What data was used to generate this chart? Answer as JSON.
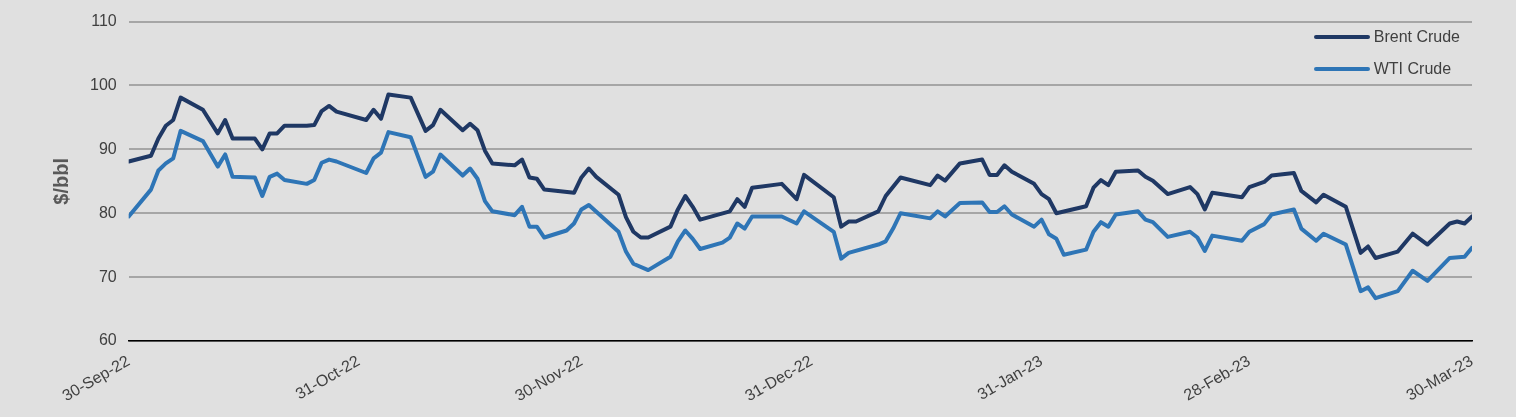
{
  "chart_data": {
    "type": "line",
    "ylabel": "$/bbl",
    "xlim": [
      "2022-09-30",
      "2023-03-30"
    ],
    "xticks": [
      {
        "value": "2022-09-30",
        "label": "30-Sep-22"
      },
      {
        "value": "2022-10-31",
        "label": "31-Oct-22"
      },
      {
        "value": "2022-11-30",
        "label": "30-Nov-22"
      },
      {
        "value": "2022-12-31",
        "label": "31-Dec-22"
      },
      {
        "value": "2023-01-31",
        "label": "31-Jan-23"
      },
      {
        "value": "2023-02-28",
        "label": "28-Feb-23"
      },
      {
        "value": "2023-03-30",
        "label": "30-Mar-23"
      }
    ],
    "ylim": [
      60,
      110
    ],
    "yticks": [
      60,
      70,
      80,
      90,
      100,
      110
    ],
    "grid": "y",
    "legend": "top right",
    "marker": "none",
    "line_style": "solid",
    "series": [
      {
        "name": "Brent Crude",
        "color": "#1f3864",
        "x": [
          "2022-09-30",
          "2022-10-03",
          "2022-10-04",
          "2022-10-05",
          "2022-10-06",
          "2022-10-07",
          "2022-10-10",
          "2022-10-12",
          "2022-10-13",
          "2022-10-14",
          "2022-10-17",
          "2022-10-18",
          "2022-10-19",
          "2022-10-20",
          "2022-10-21",
          "2022-10-24",
          "2022-10-25",
          "2022-10-26",
          "2022-10-27",
          "2022-10-28",
          "2022-11-01",
          "2022-11-02",
          "2022-11-03",
          "2022-11-04",
          "2022-11-07",
          "2022-11-09",
          "2022-11-10",
          "2022-11-11",
          "2022-11-14",
          "2022-11-15",
          "2022-11-16",
          "2022-11-17",
          "2022-11-18",
          "2022-11-21",
          "2022-11-22",
          "2022-11-23",
          "2022-11-24",
          "2022-11-25",
          "2022-11-29",
          "2022-11-30",
          "2022-12-01",
          "2022-12-02",
          "2022-12-05",
          "2022-12-06",
          "2022-12-07",
          "2022-12-08",
          "2022-12-09",
          "2022-12-12",
          "2022-12-13",
          "2022-12-14",
          "2022-12-15",
          "2022-12-16",
          "2022-12-20",
          "2022-12-21",
          "2022-12-22",
          "2022-12-23",
          "2022-12-27",
          "2022-12-29",
          "2022-12-30",
          "2023-01-03",
          "2023-01-04",
          "2023-01-05",
          "2023-01-06",
          "2023-01-09",
          "2023-01-10",
          "2023-01-12",
          "2023-01-16",
          "2023-01-17",
          "2023-01-18",
          "2023-01-20",
          "2023-01-23",
          "2023-01-24",
          "2023-01-25",
          "2023-01-26",
          "2023-01-27",
          "2023-01-30",
          "2023-01-31",
          "2023-02-01",
          "2023-02-02",
          "2023-02-06",
          "2023-02-07",
          "2023-02-08",
          "2023-02-09",
          "2023-02-10",
          "2023-02-13",
          "2023-02-14",
          "2023-02-15",
          "2023-02-17",
          "2023-02-20",
          "2023-02-21",
          "2023-02-22",
          "2023-02-23",
          "2023-02-27",
          "2023-02-28",
          "2023-03-02",
          "2023-03-03",
          "2023-03-06",
          "2023-03-07",
          "2023-03-09",
          "2023-03-10",
          "2023-03-13",
          "2023-03-15",
          "2023-03-16",
          "2023-03-17",
          "2023-03-20",
          "2023-03-22",
          "2023-03-24",
          "2023-03-27",
          "2023-03-28",
          "2023-03-29",
          "2023-03-30"
        ],
        "values": [
          88.1,
          89.0,
          91.7,
          93.7,
          94.6,
          98.1,
          96.2,
          92.5,
          94.6,
          91.7,
          91.7,
          90.0,
          92.5,
          92.5,
          93.7,
          93.7,
          93.8,
          96.0,
          96.8,
          95.9,
          94.6,
          96.2,
          94.8,
          98.6,
          98.1,
          92.9,
          93.8,
          96.2,
          93.0,
          94.0,
          93.0,
          89.8,
          87.8,
          87.5,
          88.4,
          85.6,
          85.4,
          83.7,
          83.2,
          85.6,
          87.0,
          85.7,
          82.9,
          79.4,
          77.1,
          76.2,
          76.2,
          77.9,
          80.6,
          82.7,
          81.0,
          79.0,
          80.3,
          82.2,
          81.0,
          84.0,
          84.6,
          82.2,
          86.0,
          82.5,
          77.9,
          78.7,
          78.7,
          80.3,
          82.7,
          85.6,
          84.4,
          85.9,
          85.1,
          87.8,
          88.4,
          86.0,
          86.0,
          87.5,
          86.5,
          84.6,
          83.0,
          82.2,
          80.0,
          81.1,
          84.0,
          85.2,
          84.4,
          86.5,
          86.7,
          85.7,
          85.1,
          83.0,
          84.1,
          83.0,
          80.6,
          83.2,
          82.5,
          84.1,
          84.9,
          85.9,
          86.3,
          83.5,
          81.7,
          82.9,
          81.0,
          73.8,
          74.8,
          73.0,
          74.0,
          76.8,
          75.1,
          78.4,
          78.7,
          78.4,
          79.5
        ]
      },
      {
        "name": "WTI Crude",
        "color": "#2e75b6",
        "x": [
          "2022-09-30",
          "2022-10-03",
          "2022-10-04",
          "2022-10-05",
          "2022-10-06",
          "2022-10-07",
          "2022-10-10",
          "2022-10-12",
          "2022-10-13",
          "2022-10-14",
          "2022-10-17",
          "2022-10-18",
          "2022-10-19",
          "2022-10-20",
          "2022-10-21",
          "2022-10-24",
          "2022-10-25",
          "2022-10-26",
          "2022-10-27",
          "2022-10-28",
          "2022-11-01",
          "2022-11-02",
          "2022-11-03",
          "2022-11-04",
          "2022-11-07",
          "2022-11-09",
          "2022-11-10",
          "2022-11-11",
          "2022-11-14",
          "2022-11-15",
          "2022-11-16",
          "2022-11-17",
          "2022-11-18",
          "2022-11-21",
          "2022-11-22",
          "2022-11-23",
          "2022-11-24",
          "2022-11-25",
          "2022-11-28",
          "2022-11-29",
          "2022-11-30",
          "2022-12-01",
          "2022-12-05",
          "2022-12-06",
          "2022-12-07",
          "2022-12-09",
          "2022-12-12",
          "2022-12-13",
          "2022-12-14",
          "2022-12-15",
          "2022-12-16",
          "2022-12-19",
          "2022-12-20",
          "2022-12-21",
          "2022-12-22",
          "2022-12-23",
          "2022-12-27",
          "2022-12-29",
          "2022-12-30",
          "2023-01-03",
          "2023-01-04",
          "2023-01-05",
          "2023-01-09",
          "2023-01-10",
          "2023-01-11",
          "2023-01-12",
          "2023-01-16",
          "2023-01-17",
          "2023-01-18",
          "2023-01-20",
          "2023-01-23",
          "2023-01-24",
          "2023-01-25",
          "2023-01-26",
          "2023-01-27",
          "2023-01-30",
          "2023-01-31",
          "2023-02-01",
          "2023-02-02",
          "2023-02-03",
          "2023-02-06",
          "2023-02-07",
          "2023-02-08",
          "2023-02-09",
          "2023-02-10",
          "2023-02-13",
          "2023-02-14",
          "2023-02-15",
          "2023-02-17",
          "2023-02-20",
          "2023-02-21",
          "2023-02-22",
          "2023-02-23",
          "2023-02-27",
          "2023-02-28",
          "2023-03-02",
          "2023-03-03",
          "2023-03-06",
          "2023-03-07",
          "2023-03-09",
          "2023-03-10",
          "2023-03-13",
          "2023-03-15",
          "2023-03-16",
          "2023-03-17",
          "2023-03-20",
          "2023-03-22",
          "2023-03-24",
          "2023-03-27",
          "2023-03-29",
          "2023-03-30"
        ],
        "values": [
          79.5,
          83.7,
          86.7,
          87.8,
          88.6,
          92.9,
          91.3,
          87.3,
          89.2,
          85.7,
          85.6,
          82.7,
          85.7,
          86.2,
          85.2,
          84.6,
          85.2,
          87.9,
          88.4,
          88.1,
          86.3,
          88.6,
          89.5,
          92.7,
          91.9,
          85.7,
          86.5,
          89.2,
          85.9,
          87.0,
          85.4,
          81.9,
          80.3,
          79.7,
          81.0,
          77.9,
          77.9,
          76.2,
          77.3,
          78.4,
          80.6,
          81.3,
          77.1,
          74.0,
          72.1,
          71.1,
          73.2,
          75.6,
          77.3,
          76.0,
          74.4,
          75.4,
          76.2,
          78.4,
          77.6,
          79.5,
          79.5,
          78.4,
          80.3,
          77.1,
          72.9,
          73.8,
          75.1,
          75.6,
          77.6,
          80.0,
          79.2,
          80.3,
          79.5,
          81.6,
          81.7,
          80.2,
          80.2,
          81.1,
          79.8,
          77.9,
          79.0,
          76.7,
          76.0,
          73.5,
          74.3,
          77.1,
          78.6,
          77.9,
          79.8,
          80.3,
          79.0,
          78.6,
          76.3,
          77.1,
          76.2,
          74.1,
          76.5,
          75.7,
          77.1,
          78.3,
          79.8,
          80.6,
          77.6,
          75.7,
          76.8,
          75.1,
          67.8,
          68.4,
          66.7,
          67.8,
          71.0,
          69.4,
          73.0,
          73.2,
          74.6
        ]
      }
    ]
  }
}
